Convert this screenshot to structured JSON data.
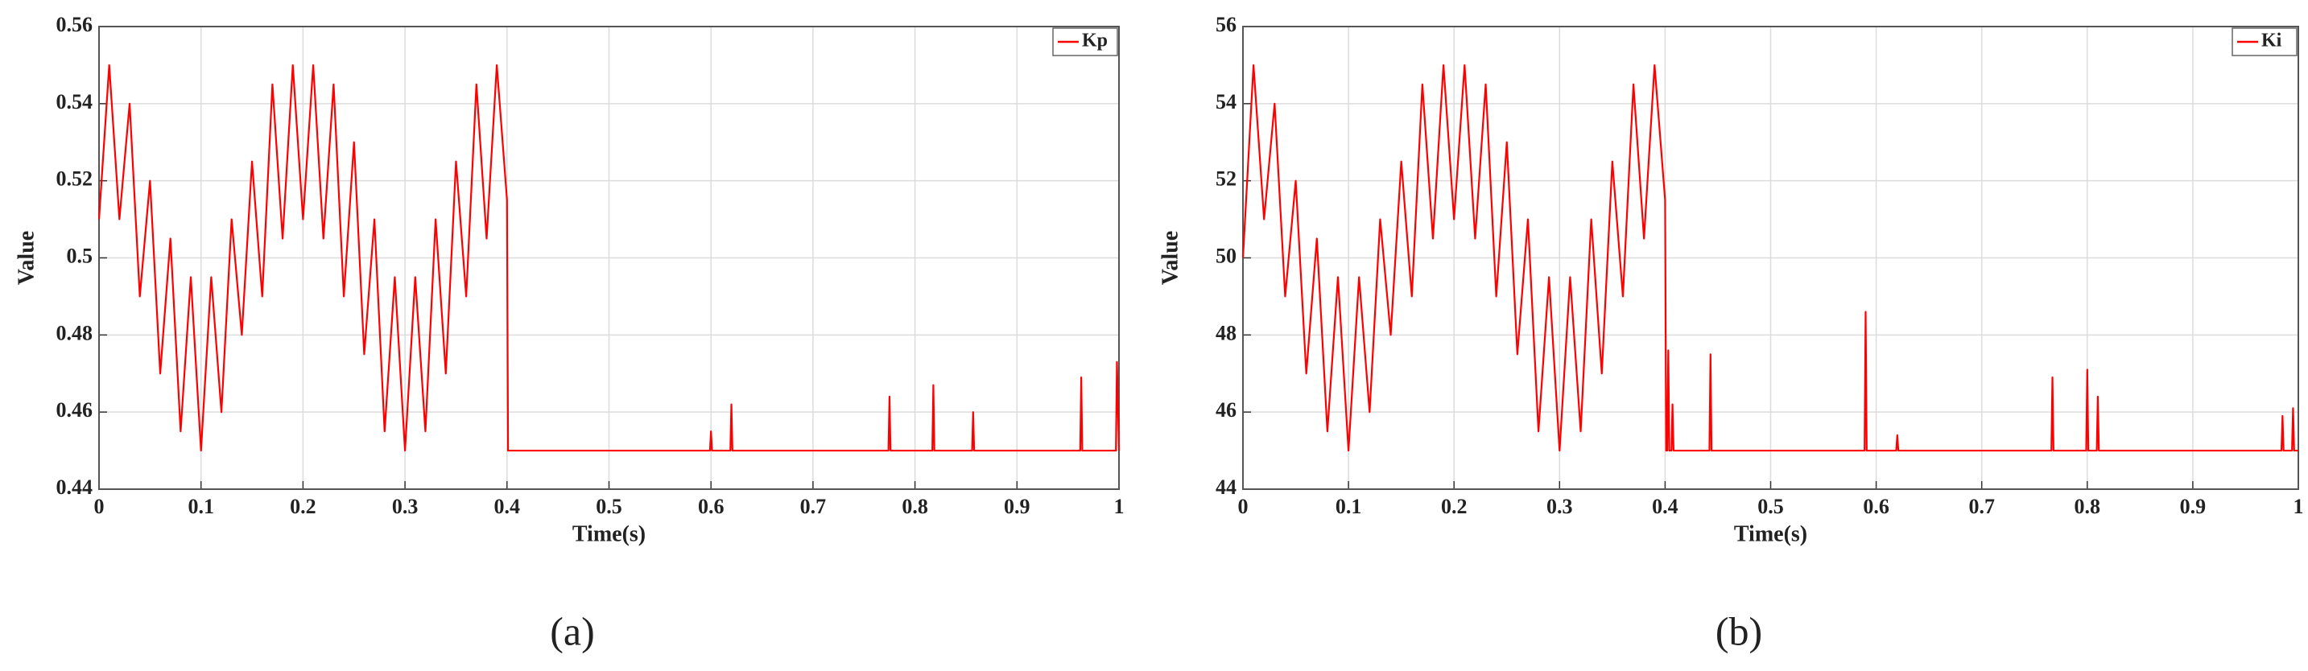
{
  "chart_data": [
    {
      "type": "line",
      "label": "(a)",
      "xlabel": "Time(s)",
      "ylabel": "Value",
      "grid": true,
      "legend": "upper right",
      "xlim": [
        0,
        1
      ],
      "xticks": [
        0,
        0.1,
        0.2,
        0.3,
        0.4,
        0.5,
        0.6,
        0.7,
        0.8,
        0.9,
        1
      ],
      "ylim": [
        0.44,
        0.56
      ],
      "yticks": [
        0.44,
        0.46,
        0.48,
        0.5,
        0.52,
        0.54,
        0.56
      ],
      "x": [
        0,
        0.01,
        0.02,
        0.03,
        0.04,
        0.05,
        0.06,
        0.07,
        0.08,
        0.09,
        0.1,
        0.11,
        0.12,
        0.13,
        0.14,
        0.15,
        0.16,
        0.17,
        0.18,
        0.19,
        0.2,
        0.21,
        0.22,
        0.23,
        0.24,
        0.25,
        0.26,
        0.27,
        0.28,
        0.29,
        0.3,
        0.31,
        0.32,
        0.33,
        0.34,
        0.35,
        0.36,
        0.37,
        0.38,
        0.39,
        0.4,
        0.401,
        0.599,
        0.6,
        0.601,
        0.619,
        0.62,
        0.621,
        0.774,
        0.775,
        0.776,
        0.817,
        0.818,
        0.819,
        0.856,
        0.857,
        0.858,
        0.962,
        0.963,
        0.964,
        0.997,
        0.998,
        1
      ],
      "series": [
        {
          "name": "Kp",
          "color": "#ff0000",
          "values": [
            0.51,
            0.55,
            0.51,
            0.54,
            0.49,
            0.52,
            0.47,
            0.505,
            0.455,
            0.495,
            0.45,
            0.495,
            0.46,
            0.51,
            0.48,
            0.525,
            0.49,
            0.545,
            0.505,
            0.55,
            0.51,
            0.55,
            0.505,
            0.545,
            0.49,
            0.53,
            0.475,
            0.51,
            0.455,
            0.495,
            0.45,
            0.495,
            0.455,
            0.51,
            0.47,
            0.525,
            0.49,
            0.545,
            0.505,
            0.55,
            0.515,
            0.45,
            0.45,
            0.455,
            0.45,
            0.45,
            0.462,
            0.45,
            0.45,
            0.464,
            0.45,
            0.45,
            0.467,
            0.45,
            0.45,
            0.46,
            0.45,
            0.45,
            0.469,
            0.45,
            0.45,
            0.473,
            0.45
          ]
        }
      ]
    },
    {
      "type": "line",
      "label": "(b)",
      "xlabel": "Time(s)",
      "ylabel": "Value",
      "grid": true,
      "legend": "upper right",
      "xlim": [
        0,
        1
      ],
      "xticks": [
        0,
        0.1,
        0.2,
        0.3,
        0.4,
        0.5,
        0.6,
        0.7,
        0.8,
        0.9,
        1
      ],
      "ylim": [
        44,
        56
      ],
      "yticks": [
        44,
        46,
        48,
        50,
        52,
        54,
        56
      ],
      "x": [
        0,
        0.01,
        0.02,
        0.03,
        0.04,
        0.05,
        0.06,
        0.07,
        0.08,
        0.09,
        0.1,
        0.11,
        0.12,
        0.13,
        0.14,
        0.15,
        0.16,
        0.17,
        0.18,
        0.19,
        0.2,
        0.21,
        0.22,
        0.23,
        0.24,
        0.25,
        0.26,
        0.27,
        0.28,
        0.29,
        0.3,
        0.31,
        0.32,
        0.33,
        0.34,
        0.35,
        0.36,
        0.37,
        0.38,
        0.39,
        0.4,
        0.401,
        0.402,
        0.403,
        0.404,
        0.406,
        0.407,
        0.408,
        0.442,
        0.443,
        0.444,
        0.589,
        0.59,
        0.591,
        0.619,
        0.62,
        0.621,
        0.766,
        0.767,
        0.768,
        0.799,
        0.8,
        0.801,
        0.809,
        0.81,
        0.811,
        0.984,
        0.985,
        0.986,
        0.994,
        0.995,
        0.996,
        1
      ],
      "series": [
        {
          "name": "Ki",
          "color": "#ff0000",
          "values": [
            50,
            55,
            51,
            54,
            49,
            52,
            47,
            50.5,
            45.5,
            49.5,
            45,
            49.5,
            46,
            51,
            48,
            52.5,
            49,
            54.5,
            50.5,
            55,
            51,
            55,
            50.5,
            54.5,
            49,
            53,
            47.5,
            51,
            45.5,
            49.5,
            45,
            49.5,
            45.5,
            51,
            47,
            52.5,
            49,
            54.5,
            50.5,
            55,
            51.5,
            45,
            45,
            47.6,
            45,
            45,
            46.2,
            45,
            45,
            47.5,
            45,
            45,
            48.6,
            45,
            45,
            45.4,
            45,
            45,
            46.9,
            45,
            45,
            47.1,
            45,
            45,
            46.4,
            45,
            45,
            45.9,
            45,
            45,
            46.1,
            45,
            45
          ]
        }
      ]
    }
  ]
}
